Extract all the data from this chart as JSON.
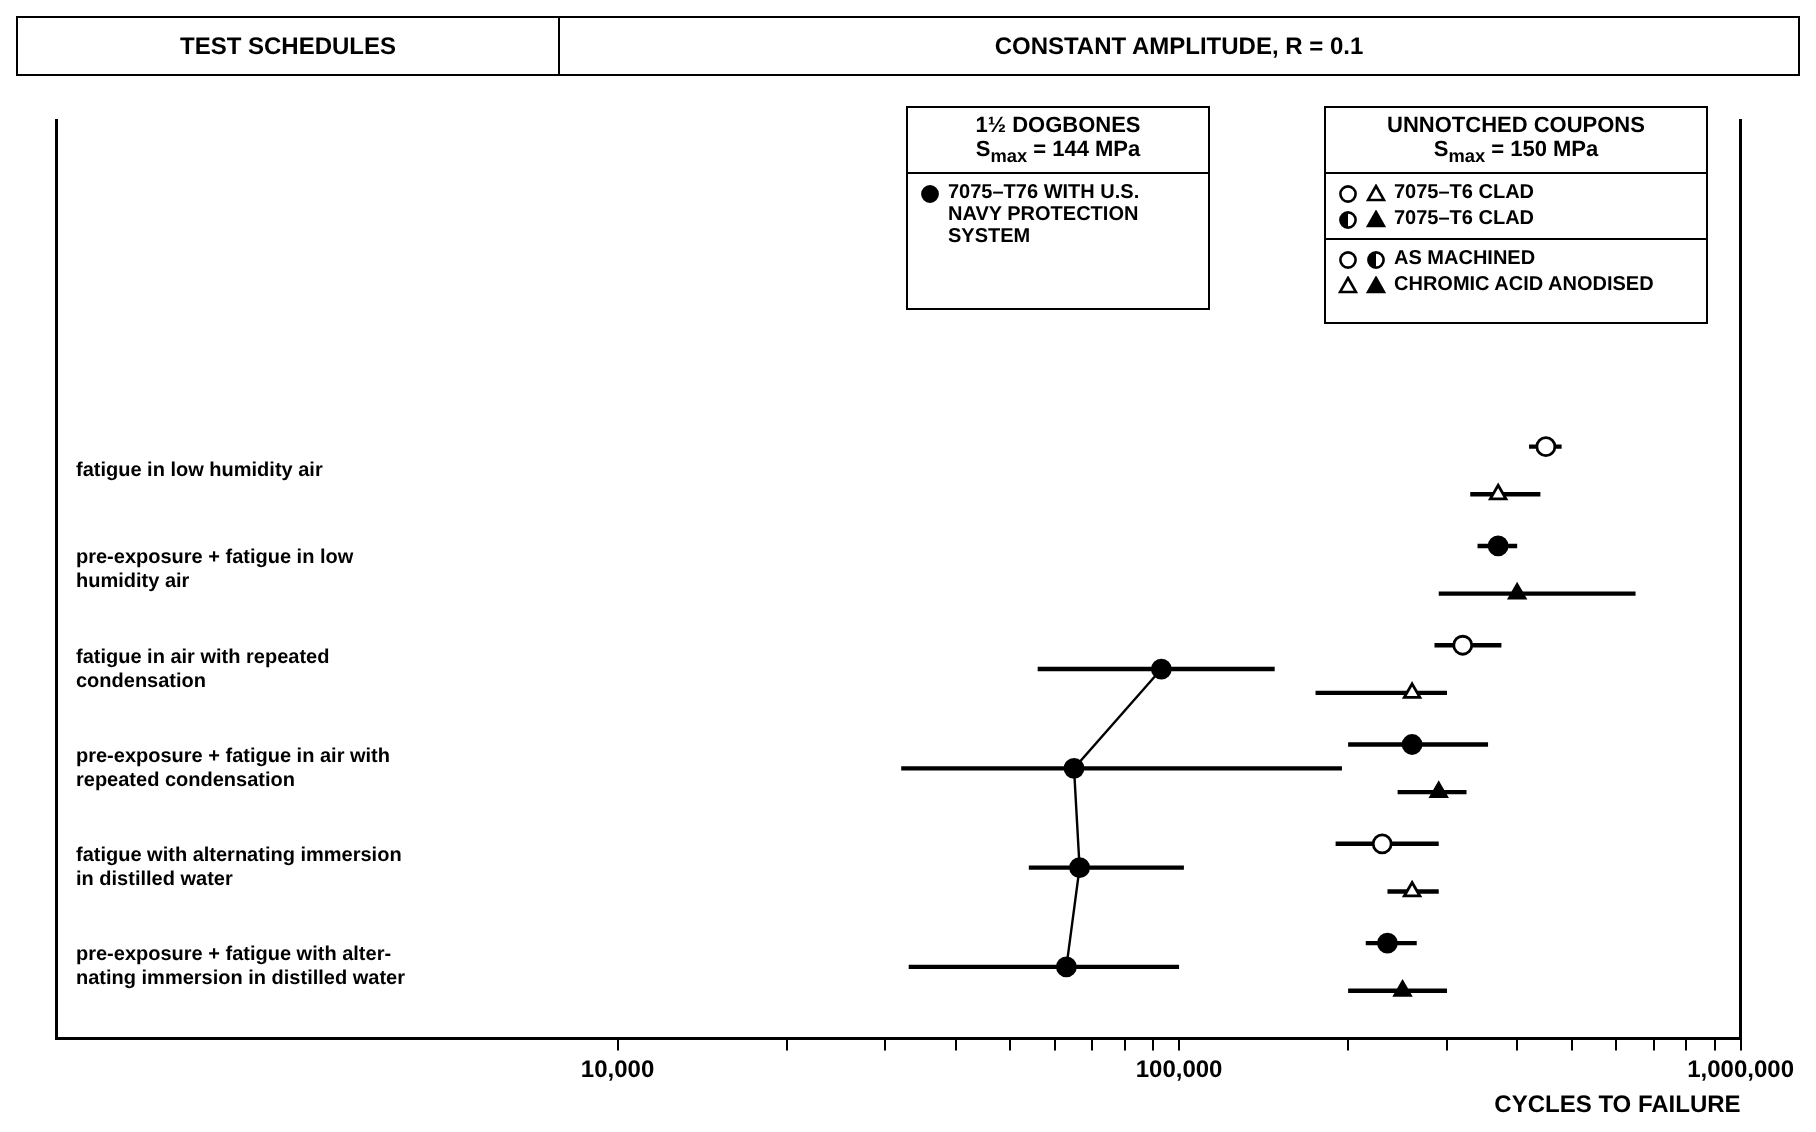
{
  "chart_data": {
    "type": "scatter",
    "orientation": "horizontal",
    "title": "CONSTANT AMPLITUDE, R = 0.1",
    "xlabel": "CYCLES TO FAILURE",
    "categories": [
      "fatigue in low humidity air",
      "pre-exposure + fatigue in low humidity air",
      "fatigue in air with repeated condensation",
      "pre-exposure + fatigue in air with repeated condensation",
      "fatigue with alternating immersion in distilled water",
      "pre-exposure + fatigue with alter- nating immersion in distilled water"
    ],
    "log": "x",
    "xlim": [
      1000,
      1000000
    ],
    "xticks": [
      {
        "value": 10000,
        "label": "10,000"
      },
      {
        "value": 20000,
        "label": null
      },
      {
        "value": 30000,
        "label": null
      },
      {
        "value": 40000,
        "label": null
      },
      {
        "value": 50000,
        "label": null
      },
      {
        "value": 60000,
        "label": null
      },
      {
        "value": 70000,
        "label": null
      },
      {
        "value": 80000,
        "label": null
      },
      {
        "value": 90000,
        "label": null
      },
      {
        "value": 100000,
        "label": "100,000"
      },
      {
        "value": 200000,
        "label": null
      },
      {
        "value": 300000,
        "label": null
      },
      {
        "value": 400000,
        "label": null
      },
      {
        "value": 500000,
        "label": null
      },
      {
        "value": 600000,
        "label": null
      },
      {
        "value": 700000,
        "label": null
      },
      {
        "value": 800000,
        "label": null
      },
      {
        "value": 900000,
        "label": null
      },
      {
        "value": 1000000,
        "label": "1,000,000"
      }
    ],
    "legend": false,
    "series": [
      {
        "type": "line",
        "marker": "circle",
        "color": "#000000",
        "values": [
          null,
          null,
          93000,
          65000,
          66500,
          63000
        ],
        "errors": [
          null,
          null,
          [
            56000,
            148000
          ],
          [
            32000,
            195000
          ],
          [
            54000,
            102000
          ],
          [
            33000,
            100000
          ]
        ]
      },
      {
        "marker": "circle",
        "color": "#ffffff",
        "values": [
          450000,
          null,
          320000,
          null,
          230000,
          null
        ],
        "errors": [
          [
            420000,
            480000
          ],
          null,
          [
            285000,
            375000
          ],
          null,
          [
            190000,
            290000
          ],
          null
        ]
      },
      {
        "marker": "circle",
        "color": "#000000",
        "values": [
          null,
          370000,
          null,
          260000,
          null,
          235000
        ],
        "errors": [
          null,
          [
            340000,
            400000
          ],
          null,
          [
            200000,
            355000
          ],
          null,
          [
            215000,
            265000
          ]
        ]
      },
      {
        "marker": "triangle",
        "color": "#ffffff",
        "values": [
          370000,
          null,
          260000,
          null,
          260000,
          null
        ],
        "errors": [
          [
            330000,
            440000
          ],
          null,
          [
            175000,
            300000
          ],
          null,
          [
            235000,
            290000
          ],
          null
        ]
      },
      {
        "marker": "triangle",
        "color": "#000000",
        "values": [
          null,
          400000,
          null,
          290000,
          null,
          250000
        ],
        "errors": [
          null,
          [
            290000,
            650000
          ],
          null,
          [
            245000,
            325000
          ],
          null,
          [
            200000,
            300000
          ]
        ]
      }
    ],
    "annotations": [
      "1½ DOGBONES",
      "S$_{max}$ = 144 MPa",
      "7075–T76 WITH U.S. NAVY PROTECTION SYSTEM",
      "UNNOTCHED COUPONS",
      "S$_{max}$ = 150 MPa",
      "7075–T6 CLAD",
      "7075–T6 CLAD",
      "AS MACHINED",
      "CHROMIC ACID ANODISED",
      "TEST SCHEDULES"
    ]
  }
}
